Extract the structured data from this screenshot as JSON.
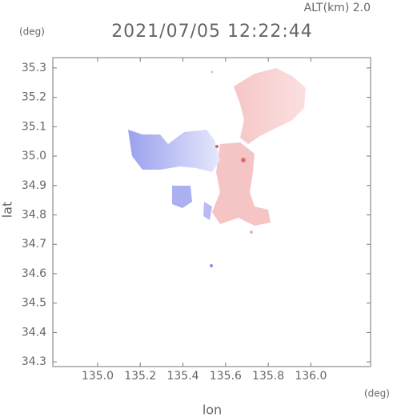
{
  "chart_data": {
    "type": "map",
    "title": "2021/07/05 12:22:44",
    "subtitle": "ALT(km) 2.0",
    "x_label": "lon",
    "y_label": "lat",
    "x_unit": "(deg)",
    "y_unit": "(deg)",
    "xlim": [
      134.79,
      136.28
    ],
    "xticks": [
      {
        "value": 135,
        "label": "135.0"
      },
      135.2,
      135.4,
      135.6,
      135.8,
      {
        "value": 136,
        "label": "136.0"
      }
    ],
    "ylim": [
      34.284,
      35.335
    ],
    "yticks": [
      34.3,
      34.4,
      34.5,
      34.6,
      34.7,
      34.8,
      34.9,
      {
        "value": 35,
        "label": "35.0"
      },
      35.1,
      35.2,
      35.3
    ]
  }
}
